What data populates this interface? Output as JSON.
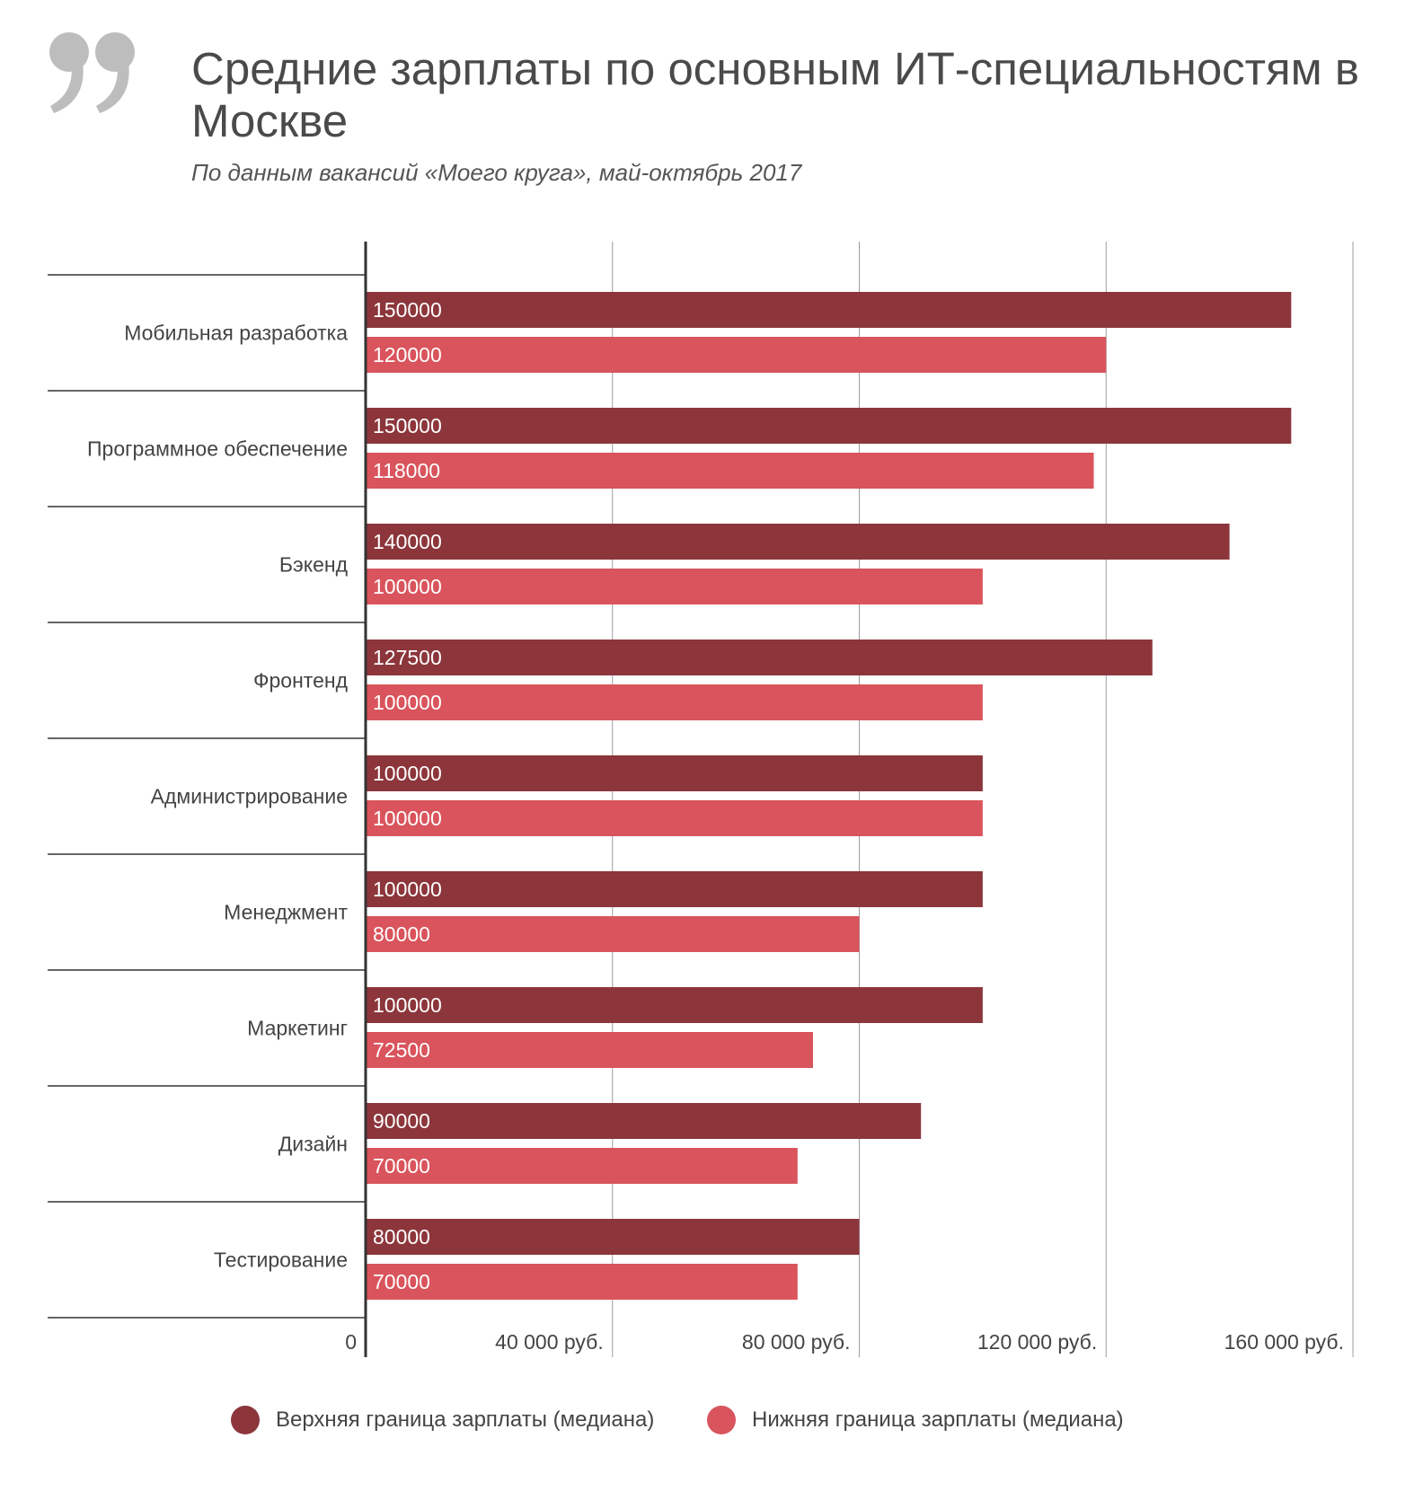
{
  "header": {
    "title": "Средние зарплаты по основным ИТ-специальностям в Москве",
    "subtitle": "По данным вакансий «Моего круга», май-октябрь 2017"
  },
  "icons": {
    "quote": "quote-mark-icon"
  },
  "colors": {
    "upper": "#8c363b",
    "lower": "#d9545c",
    "quote": "#bdbdbd"
  },
  "chart_data": {
    "type": "bar",
    "orientation": "horizontal",
    "title": "Средние зарплаты по основным ИТ-специальностям в Москве",
    "subtitle": "По данным вакансий «Моего круга», май-октябрь 2017",
    "categories": [
      "Мобильная разработка",
      "Программное обеспечение",
      "Бэкенд",
      "Фронтенд",
      "Администрирование",
      "Менеджмент",
      "Маркетинг",
      "Дизайн",
      "Тестирование"
    ],
    "series": [
      {
        "name": "Верхняя граница зарплаты (медиана)",
        "color": "#8c363b",
        "values": [
          150000,
          150000,
          140000,
          127500,
          100000,
          100000,
          100000,
          90000,
          80000
        ]
      },
      {
        "name": "Нижняя граница зарплаты (медиана)",
        "color": "#d9545c",
        "values": [
          120000,
          118000,
          100000,
          100000,
          100000,
          80000,
          72500,
          70000,
          70000
        ]
      }
    ],
    "xlim": [
      0,
      160000
    ],
    "xticks": [
      0,
      40000,
      80000,
      120000,
      160000
    ],
    "xtick_labels": [
      "0",
      "40 000 руб.",
      "80 000 руб.",
      "120 000 руб.",
      "160 000 руб."
    ],
    "grid": true,
    "legend_position": "bottom"
  }
}
